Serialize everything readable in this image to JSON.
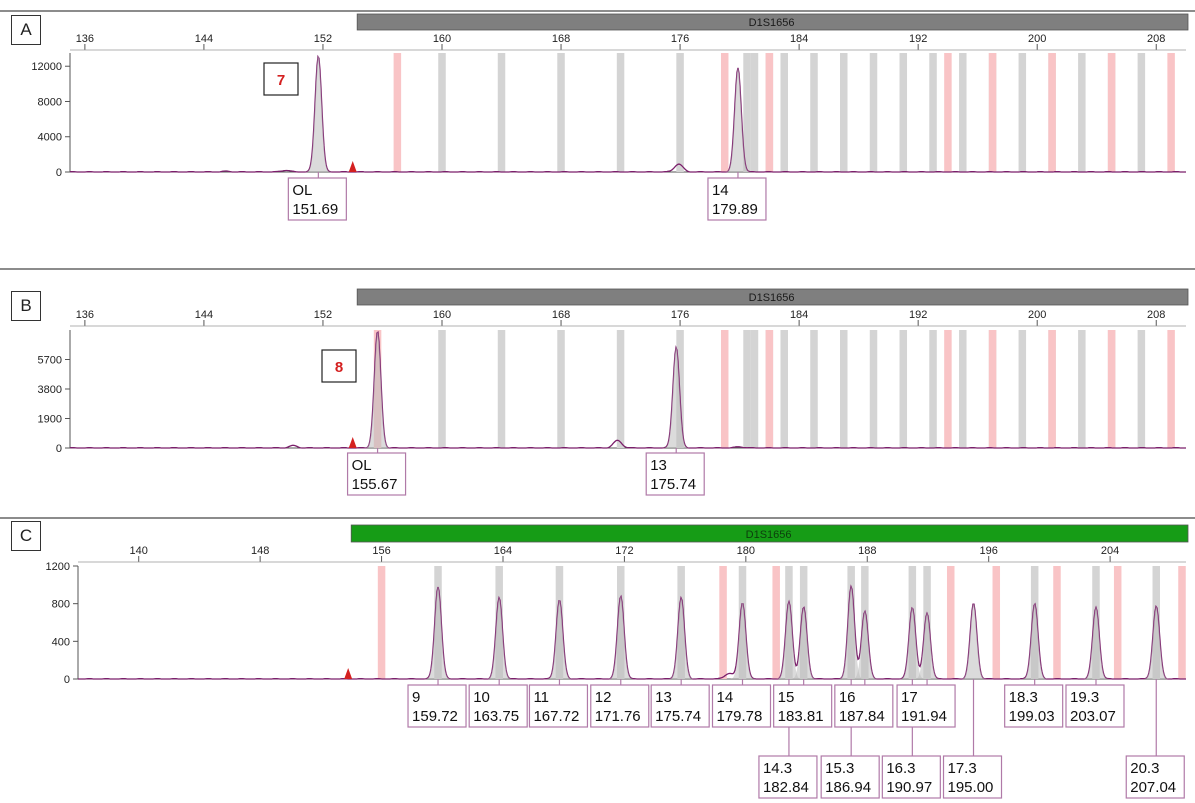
{
  "locus_colors": {
    "A": "#7f7f7f",
    "B": "#7f7f7f",
    "C": "#169c16"
  },
  "colors": {
    "trace": "#7b1f6b",
    "bin_gray": "#d4d4d4",
    "bin_pink": "#f9c4c6",
    "label_border": "#b07aa8",
    "red": "#d42020"
  },
  "chart_data": [
    {
      "type": "line",
      "panel_label": "A",
      "locus": "D1S1656",
      "xlim": [
        135,
        210
      ],
      "ylim": [
        0,
        13500
      ],
      "xticks": [
        136,
        144,
        152,
        160,
        168,
        176,
        184,
        192,
        200,
        208
      ],
      "yticks": [
        0,
        4000,
        8000,
        12000
      ],
      "gray_bins": [
        160,
        164,
        168,
        172,
        176,
        180.5,
        181,
        182,
        183,
        185,
        187,
        189,
        191,
        193,
        195,
        197,
        199,
        201,
        203,
        205,
        207
      ],
      "pink_bins": [
        157,
        179,
        182,
        194,
        197,
        201,
        205,
        209
      ],
      "peaks": [
        {
          "x": 151.69,
          "height": 13200,
          "allele": "OL",
          "size": "151.69"
        },
        {
          "x": 179.89,
          "height": 11800,
          "allele": "14",
          "size": "179.89"
        },
        {
          "x": 175.9,
          "height": 900
        },
        {
          "x": 149.5,
          "height": 200
        },
        {
          "x": 145.5,
          "height": 80
        }
      ],
      "marker_x": 154,
      "callout": "7"
    },
    {
      "type": "line",
      "panel_label": "B",
      "locus": "D1S1656",
      "xlim": [
        135,
        210
      ],
      "ylim": [
        0,
        7600
      ],
      "xticks": [
        136,
        144,
        152,
        160,
        168,
        176,
        184,
        192,
        200,
        208
      ],
      "yticks": [
        0,
        1900,
        3800,
        5700
      ],
      "gray_bins": [
        160,
        164,
        168,
        172,
        176,
        180.5,
        181,
        182,
        183,
        185,
        187,
        189,
        191,
        193,
        195,
        197,
        199,
        201,
        203,
        205,
        207
      ],
      "pink_bins": [
        155.67,
        179,
        182,
        194,
        197,
        201,
        205,
        209
      ],
      "peaks": [
        {
          "x": 155.67,
          "height": 7500,
          "allele": "OL",
          "size": "155.67"
        },
        {
          "x": 175.74,
          "height": 6500,
          "allele": "13",
          "size": "175.74"
        },
        {
          "x": 171.8,
          "height": 480
        },
        {
          "x": 150.0,
          "height": 150
        },
        {
          "x": 180.0,
          "height": 80
        }
      ],
      "marker_x": 154,
      "callout": "8"
    },
    {
      "type": "line",
      "panel_label": "C",
      "locus": "D1S1656",
      "xlim": [
        136,
        209
      ],
      "ylim": [
        0,
        1200
      ],
      "xticks": [
        140,
        148,
        156,
        164,
        172,
        180,
        188,
        196,
        204
      ],
      "yticks": [
        0,
        400,
        800,
        1200
      ],
      "gray_bins": [
        159.72,
        163.75,
        167.72,
        171.76,
        175.74,
        179.78,
        182.84,
        183.81,
        186.94,
        187.84,
        190.97,
        191.94,
        199.03,
        203.07,
        207.04
      ],
      "pink_bins": [
        156,
        178.5,
        182,
        193.5,
        196.5,
        200.5,
        204.5,
        209
      ],
      "peaks": [
        {
          "x": 159.72,
          "height": 980,
          "allele": "9",
          "size": "159.72"
        },
        {
          "x": 163.75,
          "height": 860,
          "allele": "10",
          "size": "163.75"
        },
        {
          "x": 167.72,
          "height": 840,
          "allele": "11",
          "size": "167.72"
        },
        {
          "x": 171.76,
          "height": 880,
          "allele": "12",
          "size": "171.76"
        },
        {
          "x": 175.74,
          "height": 860,
          "allele": "13",
          "size": "175.74"
        },
        {
          "x": 179.78,
          "height": 810,
          "allele": "14",
          "size": "179.78"
        },
        {
          "x": 182.84,
          "height": 820,
          "allele": "14.3",
          "size": "182.84"
        },
        {
          "x": 183.81,
          "height": 760,
          "allele": "15",
          "size": "183.81"
        },
        {
          "x": 186.94,
          "height": 980,
          "allele": "15.3",
          "size": "186.94"
        },
        {
          "x": 187.84,
          "height": 720,
          "allele": "16",
          "size": "187.84"
        },
        {
          "x": 190.97,
          "height": 760,
          "allele": "16.3",
          "size": "190.97"
        },
        {
          "x": 191.94,
          "height": 700,
          "allele": "17",
          "size": "191.94"
        },
        {
          "x": 195.0,
          "height": 800,
          "allele": "17.3",
          "size": "195.00"
        },
        {
          "x": 199.03,
          "height": 800,
          "allele": "18.3",
          "size": "199.03"
        },
        {
          "x": 203.07,
          "height": 760,
          "allele": "19.3",
          "size": "203.07"
        },
        {
          "x": 207.04,
          "height": 770,
          "allele": "20.3",
          "size": "207.04"
        },
        {
          "x": 178.9,
          "height": 60
        }
      ],
      "marker_x": 153.8,
      "callout": ""
    }
  ]
}
